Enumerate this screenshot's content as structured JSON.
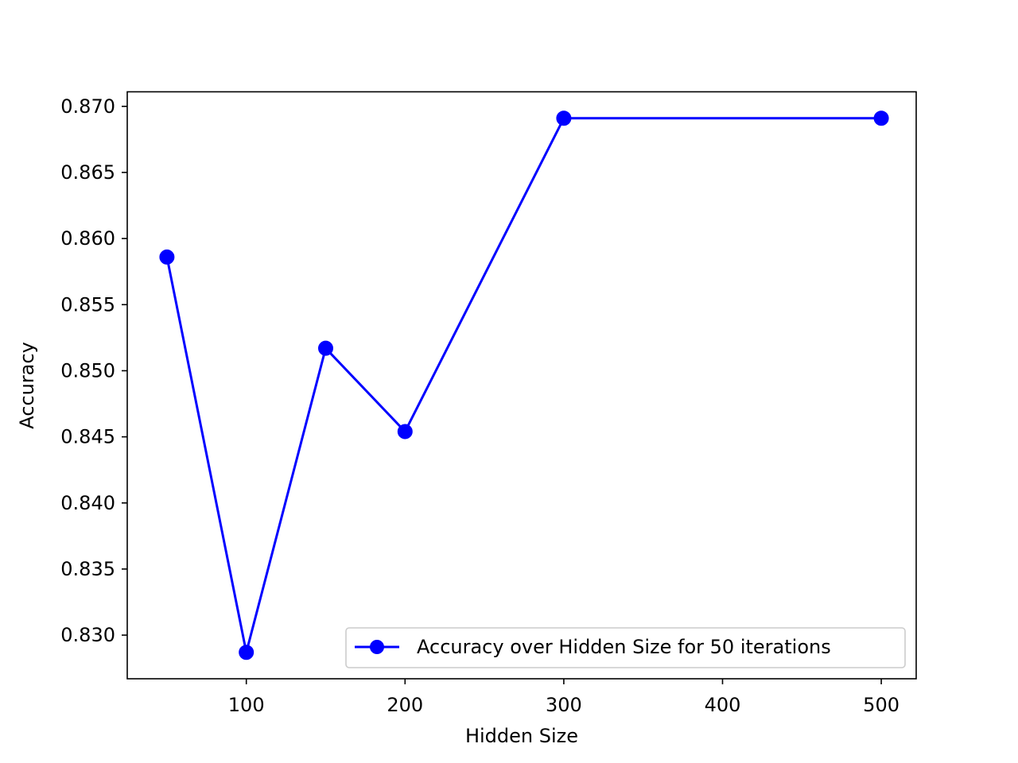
{
  "chart_data": {
    "type": "line",
    "title": "",
    "xlabel": "Hidden Size",
    "ylabel": "Accuracy",
    "xlim": [
      25,
      522
    ],
    "ylim": [
      0.8267,
      0.8711
    ],
    "x_ticks": [
      100,
      200,
      300,
      400,
      500
    ],
    "x_tick_labels": [
      "100",
      "200",
      "300",
      "400",
      "500"
    ],
    "y_ticks": [
      0.83,
      0.835,
      0.84,
      0.845,
      0.85,
      0.855,
      0.86,
      0.865,
      0.87
    ],
    "y_tick_labels": [
      "0.830",
      "0.835",
      "0.840",
      "0.845",
      "0.850",
      "0.855",
      "0.860",
      "0.865",
      "0.870"
    ],
    "grid": false,
    "legend_position": "lower-right",
    "series": [
      {
        "name": "Accuracy over Hidden Size for 50 iterations",
        "color": "#0000ff",
        "marker": "circle",
        "x": [
          50,
          100,
          150,
          200,
          300,
          500
        ],
        "y": [
          0.8586,
          0.8287,
          0.8517,
          0.8454,
          0.8691,
          0.8691
        ]
      }
    ]
  }
}
